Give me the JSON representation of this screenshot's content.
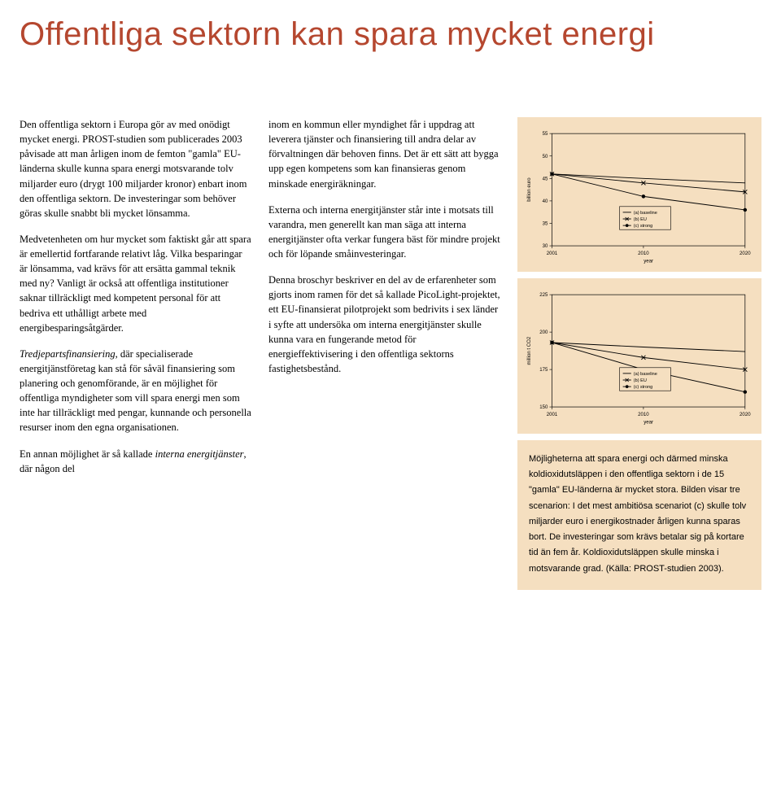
{
  "headline": "Offentliga sektorn kan spara mycket energi",
  "col1": {
    "p1": "Den offentliga sektorn i Europa gör av med onödigt mycket energi. PROST-studien som publicerades 2003 påvisade att man årligen inom de femton \"gamla\" EU-länderna skulle kunna spara energi motsvarande tolv miljarder euro (drygt 100 miljarder kronor) enbart inom den offentliga sektorn. De investeringar som behöver göras skulle snabbt bli mycket lönsamma.",
    "p2": "Medvetenheten om hur mycket som faktiskt går att spara är emellertid fortfarande relativt låg. Vilka besparingar är lönsamma, vad krävs för att ersätta gammal teknik med ny? Vanligt är också att offentliga institutioner saknar tillräckligt med kompetent personal för att bedriva ett uthålligt arbete med energibesparingsåtgärder.",
    "p3_lead": "Tredjepartsfinansiering",
    "p3_rest": ", där specialiserade energitjänstföretag kan stå för såväl finansiering som planering och genomförande, är en möjlighet för offentliga myndigheter som vill spara energi men som inte har tillräckligt med pengar, kunnande och personella resurser inom den egna organisationen.",
    "p4_pre": "En annan möjlighet är så kallade ",
    "p4_it": "interna energitjänster",
    "p4_post": ", där någon del"
  },
  "col2": {
    "p1": "inom en kommun eller myndighet får i uppdrag att leverera tjänster och finansiering till andra delar av förvaltningen där behoven finns. Det är ett sätt att bygga upp egen kompetens som kan finansieras genom minskade energiräkningar.",
    "p2": "Externa och interna energitjänster står inte i motsats till varandra, men generellt kan man säga att interna energitjänster ofta verkar fungera bäst för mindre projekt och för löpande småinvesteringar.",
    "p3": "Denna broschyr beskriver en del av de erfarenheter som gjorts inom ramen för det så kallade PicoLight-projektet, ett EU-finansierat pilotprojekt som bedrivits i sex länder i syfte att undersöka om interna energitjänster skulle kunna vara en fungerande metod för energieffektivisering i den offentliga sektorns fastighetsbestånd."
  },
  "chart1": {
    "type": "line",
    "ylabel": "billion euro",
    "xlabel": "year",
    "xlim": [
      2001,
      2020
    ],
    "xticks": [
      2001,
      2010,
      2020
    ],
    "ylim": [
      30,
      55
    ],
    "yticks": [
      30,
      35,
      40,
      45,
      50,
      55
    ],
    "background": "#f5dfc0",
    "grid_color": "#000000",
    "axis_color": "#000000",
    "text_fontsize": 6,
    "legend": {
      "items": [
        "(a) baseline",
        "(b) EU",
        "(c) strong"
      ],
      "markers": [
        "line",
        "x",
        "dot"
      ],
      "box_stroke": "#000000"
    },
    "series": [
      {
        "name": "baseline",
        "marker": "none",
        "color": "#000000",
        "points": [
          [
            2001,
            46
          ],
          [
            2010,
            45
          ],
          [
            2020,
            44
          ]
        ]
      },
      {
        "name": "EU",
        "marker": "x",
        "color": "#000000",
        "points": [
          [
            2001,
            46
          ],
          [
            2010,
            44
          ],
          [
            2020,
            42
          ]
        ]
      },
      {
        "name": "strong",
        "marker": "dot",
        "color": "#000000",
        "points": [
          [
            2001,
            46
          ],
          [
            2010,
            41
          ],
          [
            2020,
            38
          ]
        ]
      }
    ]
  },
  "chart2": {
    "type": "line",
    "ylabel": "million t CO2",
    "xlabel": "year",
    "xlim": [
      2001,
      2020
    ],
    "xticks": [
      2001,
      2010,
      2020
    ],
    "ylim": [
      150,
      225
    ],
    "yticks": [
      150,
      175,
      200,
      225
    ],
    "background": "#f5dfc0",
    "grid_color": "#000000",
    "axis_color": "#000000",
    "text_fontsize": 6,
    "legend": {
      "items": [
        "(a) baseline",
        "(b) EU",
        "(c) strong"
      ],
      "markers": [
        "line",
        "x",
        "dot"
      ],
      "box_stroke": "#000000"
    },
    "series": [
      {
        "name": "baseline",
        "marker": "none",
        "color": "#000000",
        "points": [
          [
            2001,
            193
          ],
          [
            2010,
            190
          ],
          [
            2020,
            187
          ]
        ]
      },
      {
        "name": "EU",
        "marker": "x",
        "color": "#000000",
        "points": [
          [
            2001,
            193
          ],
          [
            2010,
            183
          ],
          [
            2020,
            175
          ]
        ]
      },
      {
        "name": "strong",
        "marker": "dot",
        "color": "#000000",
        "points": [
          [
            2001,
            193
          ],
          [
            2010,
            175
          ],
          [
            2020,
            160
          ]
        ]
      }
    ]
  },
  "caption": "Möjligheterna att spara energi och därmed minska koldioxidutsläppen i den offentliga sektorn i de 15 \"gamla\" EU-länderna är mycket stora. Bilden visar tre scenarion: I det mest ambitiösa scenariot (c) skulle tolv miljarder euro i energikostnader årligen kunna sparas bort. De investeringar som krävs betalar sig på kortare tid än fem år. Koldioxidutsläppen skulle minska i motsvarande grad. (Källa: PROST-studien 2003)."
}
